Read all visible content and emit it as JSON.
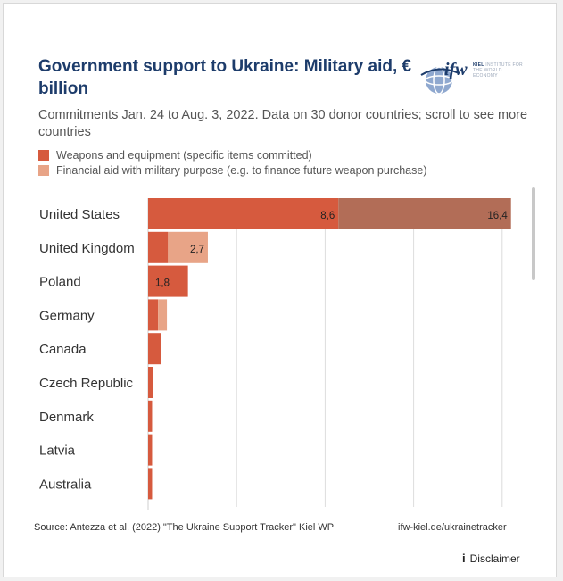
{
  "title": "Government support to Ukraine: Military aid, € billion",
  "subtitle": "Commitments Jan. 24 to Aug. 3, 2022. Data on 30 donor countries; scroll to see more countries",
  "logo": {
    "mark": "ifw",
    "small_top": "KIEL",
    "small_line1": "INSTITUTE FOR",
    "small_line2": "THE WORLD ECONOMY"
  },
  "source": "Source: Antezza et al. (2022) \"The Ukraine Support Tracker\" Kiel WP",
  "tracker_link": "ifw-kiel.de/ukrainetracker",
  "disclaimer": "Disclaimer",
  "colors": {
    "weapons": "#d65a3e",
    "financial": "#e8a487",
    "us_total": "#b26d57",
    "title": "#1d3c6b"
  },
  "chart_data": {
    "type": "bar",
    "orientation": "horizontal",
    "stacked": true,
    "categories": [
      "United States",
      "United Kingdom",
      "Poland",
      "Germany",
      "Canada",
      "Czech Republic",
      "Denmark",
      "Latvia",
      "Australia"
    ],
    "series": [
      {
        "name": "Weapons and equipment (specific items committed)",
        "color": "#d65a3e",
        "values": [
          8.6,
          0.9,
          1.8,
          0.45,
          0.6,
          0.22,
          0.18,
          0.18,
          0.18
        ]
      },
      {
        "name": "Financial aid with military purpose (e.g. to finance future weapon purchase)",
        "color": "#e8a487",
        "values": [
          7.8,
          1.8,
          0,
          0.4,
          0,
          0,
          0,
          0,
          0
        ]
      }
    ],
    "data_labels": [
      {
        "category": "United States",
        "series": 0,
        "text": "8,6"
      },
      {
        "category": "United States",
        "series": "total",
        "text": "16,4"
      },
      {
        "category": "United Kingdom",
        "series": "total",
        "text": "2,7"
      },
      {
        "category": "Poland",
        "series": 0,
        "text": "1,8"
      }
    ],
    "xlim": [
      0,
      17.5
    ],
    "grid": true,
    "legend_position": "top-left"
  }
}
